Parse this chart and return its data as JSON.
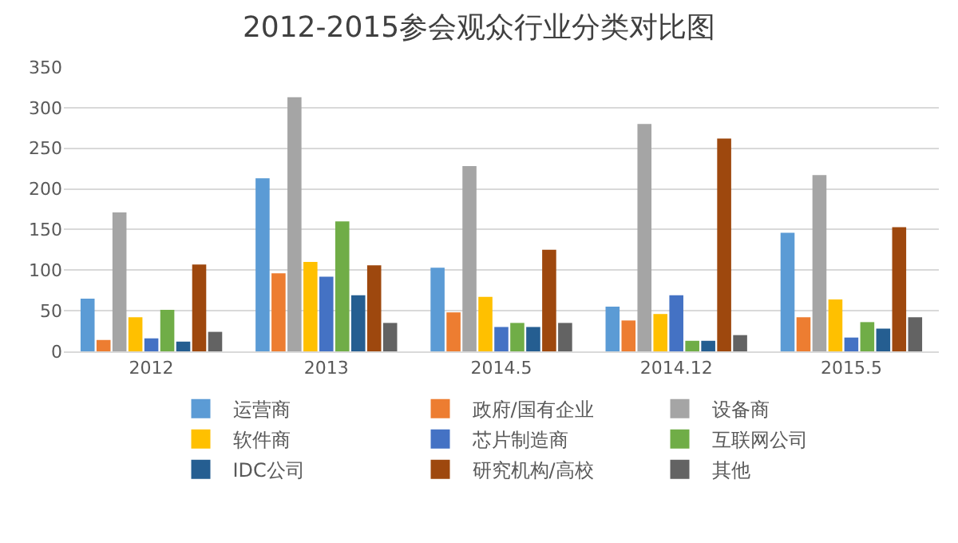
{
  "chart_data": {
    "type": "bar",
    "title": "2012-2015参会观众行业分类对比图",
    "categories": [
      "2012",
      "2013",
      "2014.5",
      "2014.12",
      "2015.5"
    ],
    "series": [
      {
        "name": "运营商",
        "color": "#5b9bd5",
        "values": [
          65,
          213,
          103,
          55,
          146
        ]
      },
      {
        "name": "政府/国有企业",
        "color": "#ed7d31",
        "values": [
          14,
          96,
          48,
          38,
          42
        ]
      },
      {
        "name": "设备商",
        "color": "#a5a5a5",
        "values": [
          171,
          313,
          228,
          280,
          217
        ]
      },
      {
        "name": "软件商",
        "color": "#ffc000",
        "values": [
          42,
          110,
          67,
          46,
          64
        ]
      },
      {
        "name": "芯片制造商",
        "color": "#4472c4",
        "values": [
          16,
          92,
          30,
          69,
          17
        ]
      },
      {
        "name": "互联网公司",
        "color": "#70ad47",
        "values": [
          51,
          160,
          35,
          13,
          36
        ]
      },
      {
        "name": "IDC公司",
        "color": "#255e91",
        "values": [
          12,
          69,
          30,
          13,
          28
        ]
      },
      {
        "name": "研究机构/高校",
        "color": "#9e480e",
        "values": [
          107,
          106,
          125,
          262,
          153
        ]
      },
      {
        "name": "其他",
        "color": "#636363",
        "values": [
          24,
          35,
          35,
          20,
          42
        ]
      }
    ],
    "ylim": [
      0,
      350
    ],
    "yticks": [
      0,
      50,
      100,
      150,
      200,
      250,
      300,
      350
    ],
    "grid": "y",
    "legend": "bottom"
  }
}
